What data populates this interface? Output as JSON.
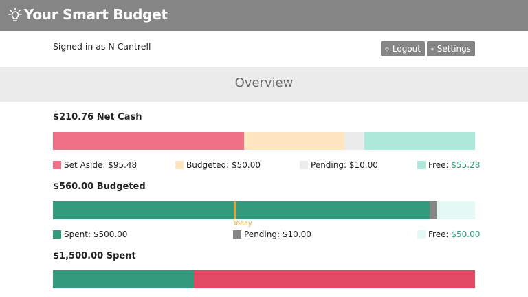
{
  "app": {
    "title": "Your Smart Budget",
    "icon": "lightbulb-icon"
  },
  "user": {
    "signed_in_text": "Signed in as N Cantrell"
  },
  "buttons": {
    "logout": {
      "label": "Logout",
      "icon": "power-icon"
    },
    "settings": {
      "label": "Settings",
      "icon": "gear-icon"
    }
  },
  "overview": {
    "heading": "Overview"
  },
  "net_cash": {
    "title": "$210.76 Net Cash",
    "segments": [
      {
        "label": "Set Aside:",
        "value": "$95.48",
        "amount": 95.48,
        "color": "#f07088"
      },
      {
        "label": "Budgeted:",
        "value": "$50.00",
        "amount": 50.0,
        "color": "#ffe5c0"
      },
      {
        "label": "Pending:",
        "value": "$10.00",
        "amount": 10.0,
        "color": "#ebebeb"
      },
      {
        "label": "Free:",
        "value": "$55.28",
        "amount": 55.28,
        "color": "#ade9db"
      }
    ]
  },
  "budgeted": {
    "title": "$560.00 Budgeted",
    "today_label": "Today",
    "today_fraction": 0.43,
    "segments": [
      {
        "label": "Spent:",
        "value": "$500.00",
        "amount": 500.0,
        "color": "#339a7e"
      },
      {
        "label": "Pending:",
        "value": "$10.00",
        "amount": 10.0,
        "color": "#858585"
      },
      {
        "label": "Free:",
        "value": "$50.00",
        "amount": 50.0,
        "color": "#e2faf3"
      }
    ]
  },
  "spent": {
    "title": "$1,500.00 Spent",
    "segments": [
      {
        "amount": 500.0,
        "color": "#339a7e"
      },
      {
        "amount": 1000.0,
        "color": "#e04a65"
      }
    ]
  }
}
